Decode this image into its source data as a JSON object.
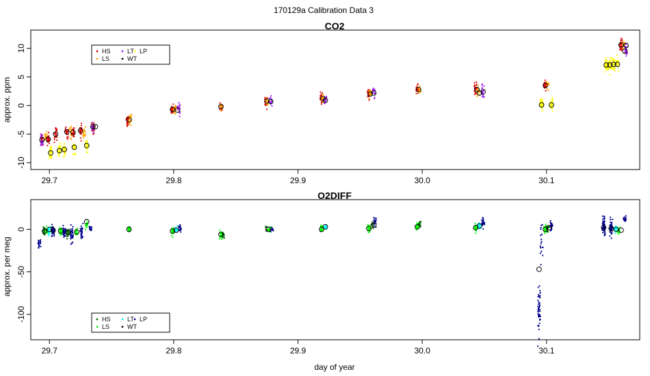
{
  "figure": {
    "title": "170129a   Calibration Data 3",
    "xlabel": "day of year"
  },
  "chart_data": [
    {
      "type": "scatter",
      "title": "CO2",
      "xlabel": "",
      "ylabel": "approx. ppm",
      "xlim": [
        29.685,
        30.175
      ],
      "ylim": [
        -11.2,
        13.2
      ],
      "xticks": [
        29.7,
        29.8,
        29.9,
        30.0,
        30.1
      ],
      "xtick_labels": [
        "29.7",
        "29.8",
        "29.9",
        "30.0",
        "30.1"
      ],
      "yticks": [
        -10,
        -5,
        0,
        5,
        10
      ],
      "ytick_labels": [
        "-10",
        "-5",
        "0",
        "5",
        "10"
      ],
      "legend": {
        "placement": "top-left",
        "entries": [
          {
            "label": "HS",
            "color": "#e00000"
          },
          {
            "label": "LS",
            "color": "#ffa500"
          },
          {
            "label": "LT",
            "color": "#a020f0"
          },
          {
            "label": "WT",
            "color": "#000000"
          },
          {
            "label": "LP",
            "color": "#ffff00"
          }
        ]
      },
      "clusters": [
        {
          "x": 29.694,
          "y": -5.8,
          "sd": 1.1,
          "color": "#e00000",
          "n": 28
        },
        {
          "x": 29.694,
          "y": -6.2,
          "sd": 1.0,
          "color": "#a020f0",
          "n": 20
        },
        {
          "x": 29.697,
          "y": -5.5,
          "sd": 1.0,
          "color": "#ffa500",
          "n": 18
        },
        {
          "x": 29.699,
          "y": -6.0,
          "sd": 1.0,
          "color": "#e00000",
          "n": 22
        },
        {
          "x": 29.701,
          "y": -8.2,
          "sd": 1.0,
          "color": "#ffff00",
          "n": 34
        },
        {
          "x": 29.705,
          "y": -5.0,
          "sd": 1.1,
          "color": "#e00000",
          "n": 24
        },
        {
          "x": 29.708,
          "y": -7.9,
          "sd": 0.9,
          "color": "#ffff00",
          "n": 30
        },
        {
          "x": 29.712,
          "y": -7.7,
          "sd": 0.9,
          "color": "#ffff00",
          "n": 28
        },
        {
          "x": 29.714,
          "y": -4.6,
          "sd": 1.1,
          "color": "#e00000",
          "n": 22
        },
        {
          "x": 29.717,
          "y": -4.6,
          "sd": 1.0,
          "color": "#ffa500",
          "n": 18
        },
        {
          "x": 29.719,
          "y": -4.7,
          "sd": 1.0,
          "color": "#e00000",
          "n": 22
        },
        {
          "x": 29.72,
          "y": -7.3,
          "sd": 0.9,
          "color": "#ffff00",
          "n": 28
        },
        {
          "x": 29.725,
          "y": -4.4,
          "sd": 1.1,
          "color": "#e00000",
          "n": 22
        },
        {
          "x": 29.728,
          "y": -4.7,
          "sd": 1.0,
          "color": "#ffa500",
          "n": 18
        },
        {
          "x": 29.73,
          "y": -7.0,
          "sd": 0.9,
          "color": "#ffff00",
          "n": 28
        },
        {
          "x": 29.735,
          "y": -3.8,
          "sd": 1.0,
          "color": "#e00000",
          "n": 20
        },
        {
          "x": 29.735,
          "y": -3.8,
          "sd": 0.9,
          "color": "#a020f0",
          "n": 18
        },
        {
          "x": 29.763,
          "y": -2.5,
          "sd": 0.9,
          "color": "#e00000",
          "n": 26
        },
        {
          "x": 29.765,
          "y": -2.4,
          "sd": 0.8,
          "color": "#ffa500",
          "n": 16
        },
        {
          "x": 29.799,
          "y": -0.7,
          "sd": 0.9,
          "color": "#e00000",
          "n": 24
        },
        {
          "x": 29.801,
          "y": -0.7,
          "sd": 0.9,
          "color": "#ffa500",
          "n": 18
        },
        {
          "x": 29.804,
          "y": -0.6,
          "sd": 0.9,
          "color": "#a020f0",
          "n": 20
        },
        {
          "x": 29.838,
          "y": -0.2,
          "sd": 0.7,
          "color": "#e00000",
          "n": 22
        },
        {
          "x": 29.838,
          "y": -0.2,
          "sd": 0.7,
          "color": "#ffa500",
          "n": 14
        },
        {
          "x": 29.874,
          "y": 0.8,
          "sd": 0.8,
          "color": "#e00000",
          "n": 22
        },
        {
          "x": 29.875,
          "y": 0.8,
          "sd": 0.7,
          "color": "#ffa500",
          "n": 14
        },
        {
          "x": 29.878,
          "y": 0.7,
          "sd": 0.8,
          "color": "#a020f0",
          "n": 18
        },
        {
          "x": 29.919,
          "y": 1.3,
          "sd": 0.8,
          "color": "#e00000",
          "n": 22
        },
        {
          "x": 29.92,
          "y": 1.2,
          "sd": 0.7,
          "color": "#ffa500",
          "n": 14
        },
        {
          "x": 29.922,
          "y": 1.0,
          "sd": 0.8,
          "color": "#a020f0",
          "n": 16
        },
        {
          "x": 29.957,
          "y": 2.0,
          "sd": 0.8,
          "color": "#e00000",
          "n": 22
        },
        {
          "x": 29.958,
          "y": 2.1,
          "sd": 0.7,
          "color": "#ffa500",
          "n": 14
        },
        {
          "x": 29.961,
          "y": 2.3,
          "sd": 0.8,
          "color": "#a020f0",
          "n": 18
        },
        {
          "x": 29.996,
          "y": 2.8,
          "sd": 0.7,
          "color": "#e00000",
          "n": 22
        },
        {
          "x": 29.998,
          "y": 2.8,
          "sd": 0.6,
          "color": "#ffa500",
          "n": 14
        },
        {
          "x": 30.043,
          "y": 2.9,
          "sd": 1.0,
          "color": "#e00000",
          "n": 24
        },
        {
          "x": 30.045,
          "y": 2.5,
          "sd": 0.9,
          "color": "#ffa500",
          "n": 16
        },
        {
          "x": 30.049,
          "y": 2.5,
          "sd": 1.0,
          "color": "#a020f0",
          "n": 22
        },
        {
          "x": 30.096,
          "y": 0.2,
          "sd": 1.1,
          "color": "#ffff00",
          "n": 34
        },
        {
          "x": 30.099,
          "y": 3.5,
          "sd": 0.9,
          "color": "#e00000",
          "n": 22
        },
        {
          "x": 30.101,
          "y": 3.6,
          "sd": 0.8,
          "color": "#ffa500",
          "n": 14
        },
        {
          "x": 30.104,
          "y": 0.3,
          "sd": 1.1,
          "color": "#ffff00",
          "n": 32
        },
        {
          "x": 30.148,
          "y": 7.1,
          "sd": 1.0,
          "color": "#ffff00",
          "n": 38
        },
        {
          "x": 30.151,
          "y": 7.1,
          "sd": 1.0,
          "color": "#ffff00",
          "n": 36
        },
        {
          "x": 30.154,
          "y": 7.2,
          "sd": 1.0,
          "color": "#ffff00",
          "n": 36
        },
        {
          "x": 30.157,
          "y": 7.2,
          "sd": 1.0,
          "color": "#ffff00",
          "n": 36
        },
        {
          "x": 30.16,
          "y": 10.6,
          "sd": 0.9,
          "color": "#e00000",
          "n": 26
        },
        {
          "x": 30.162,
          "y": 10.4,
          "sd": 0.9,
          "color": "#ffa500",
          "n": 16
        },
        {
          "x": 30.164,
          "y": 9.7,
          "sd": 1.0,
          "color": "#a020f0",
          "n": 24
        }
      ],
      "means": [
        {
          "x": 29.694,
          "y": -6.0
        },
        {
          "x": 29.699,
          "y": -5.9
        },
        {
          "x": 29.701,
          "y": -8.3
        },
        {
          "x": 29.705,
          "y": -5.0
        },
        {
          "x": 29.708,
          "y": -7.9
        },
        {
          "x": 29.712,
          "y": -7.7
        },
        {
          "x": 29.714,
          "y": -4.6
        },
        {
          "x": 29.719,
          "y": -4.7
        },
        {
          "x": 29.72,
          "y": -7.3
        },
        {
          "x": 29.725,
          "y": -4.4
        },
        {
          "x": 29.73,
          "y": -7.0
        },
        {
          "x": 29.735,
          "y": -3.7
        },
        {
          "x": 29.737,
          "y": -3.7
        },
        {
          "x": 29.764,
          "y": -2.5
        },
        {
          "x": 29.799,
          "y": -0.7
        },
        {
          "x": 29.803,
          "y": -0.8
        },
        {
          "x": 29.838,
          "y": -0.2
        },
        {
          "x": 29.875,
          "y": 0.8
        },
        {
          "x": 29.878,
          "y": 0.7
        },
        {
          "x": 29.92,
          "y": 1.2
        },
        {
          "x": 29.922,
          "y": 0.9
        },
        {
          "x": 29.958,
          "y": 2.0
        },
        {
          "x": 29.961,
          "y": 2.2
        },
        {
          "x": 29.997,
          "y": 2.8
        },
        {
          "x": 30.044,
          "y": 2.8
        },
        {
          "x": 30.046,
          "y": 2.2
        },
        {
          "x": 30.049,
          "y": 2.4
        },
        {
          "x": 30.096,
          "y": 0.1
        },
        {
          "x": 30.099,
          "y": 3.5
        },
        {
          "x": 30.104,
          "y": 0.1
        },
        {
          "x": 30.148,
          "y": 7.1
        },
        {
          "x": 30.151,
          "y": 7.1
        },
        {
          "x": 30.154,
          "y": 7.2
        },
        {
          "x": 30.157,
          "y": 7.2
        },
        {
          "x": 30.16,
          "y": 10.6
        },
        {
          "x": 30.163,
          "y": 9.5
        },
        {
          "x": 30.164,
          "y": 10.5
        }
      ]
    },
    {
      "type": "scatter",
      "title": "O2DIFF",
      "xlabel": "day of year",
      "ylabel": "approx. per meg",
      "xlim": [
        29.685,
        30.175
      ],
      "ylim": [
        -130,
        35
      ],
      "xticks": [
        29.7,
        29.8,
        29.9,
        30.0,
        30.1
      ],
      "xtick_labels": [
        "29.7",
        "29.8",
        "29.9",
        "30.0",
        "30.1"
      ],
      "yticks": [
        -100,
        -50,
        0
      ],
      "ytick_labels": [
        "-100",
        "-50",
        "0"
      ],
      "legend": {
        "placement": "bottom-left",
        "entries": [
          {
            "label": "HS",
            "color": "#006400"
          },
          {
            "label": "LS",
            "color": "#00ff00"
          },
          {
            "label": "LT",
            "color": "#00ffff"
          },
          {
            "label": "WT",
            "color": "#000000"
          },
          {
            "label": "LP",
            "color": "#00008b"
          }
        ]
      },
      "clusters": [
        {
          "x": 29.692,
          "y": -16,
          "sd": 4,
          "color": "#00008b",
          "n": 22
        },
        {
          "x": 29.696,
          "y": -2,
          "sd": 4,
          "color": "#006400",
          "n": 22
        },
        {
          "x": 29.698,
          "y": -2,
          "sd": 4,
          "color": "#00ff00",
          "n": 16
        },
        {
          "x": 29.7,
          "y": -1,
          "sd": 5,
          "color": "#00ffff",
          "n": 20
        },
        {
          "x": 29.703,
          "y": -3,
          "sd": 6,
          "color": "#00008b",
          "n": 40
        },
        {
          "x": 29.709,
          "y": -2,
          "sd": 4,
          "color": "#00ff00",
          "n": 20
        },
        {
          "x": 29.712,
          "y": -3,
          "sd": 6,
          "color": "#00008b",
          "n": 36
        },
        {
          "x": 29.715,
          "y": -4,
          "sd": 4,
          "color": "#006400",
          "n": 20
        },
        {
          "x": 29.718,
          "y": -6,
          "sd": 9,
          "color": "#00008b",
          "n": 30
        },
        {
          "x": 29.722,
          "y": -3,
          "sd": 4,
          "color": "#00ff00",
          "n": 16
        },
        {
          "x": 29.726,
          "y": -5,
          "sd": 7,
          "color": "#00008b",
          "n": 30
        },
        {
          "x": 29.73,
          "y": 6,
          "sd": 4,
          "color": "#00ff00",
          "n": 18
        },
        {
          "x": 29.733,
          "y": 1,
          "sd": 4,
          "color": "#00008b",
          "n": 16
        },
        {
          "x": 29.764,
          "y": 0,
          "sd": 3,
          "color": "#00ff00",
          "n": 22
        },
        {
          "x": 29.799,
          "y": -2,
          "sd": 4,
          "color": "#00ff00",
          "n": 22
        },
        {
          "x": 29.802,
          "y": -1,
          "sd": 4,
          "color": "#00ffff",
          "n": 16
        },
        {
          "x": 29.805,
          "y": 0,
          "sd": 4,
          "color": "#00008b",
          "n": 18
        },
        {
          "x": 29.838,
          "y": -6,
          "sd": 4,
          "color": "#00ff00",
          "n": 22
        },
        {
          "x": 29.84,
          "y": -7,
          "sd": 4,
          "color": "#006400",
          "n": 14
        },
        {
          "x": 29.875,
          "y": 1,
          "sd": 3,
          "color": "#006400",
          "n": 16
        },
        {
          "x": 29.877,
          "y": 0,
          "sd": 3,
          "color": "#00ff00",
          "n": 18
        },
        {
          "x": 29.879,
          "y": -1,
          "sd": 3,
          "color": "#00008b",
          "n": 16
        },
        {
          "x": 29.919,
          "y": 0,
          "sd": 4,
          "color": "#00ff00",
          "n": 20
        },
        {
          "x": 29.922,
          "y": 3,
          "sd": 3,
          "color": "#00ffff",
          "n": 18
        },
        {
          "x": 29.957,
          "y": 1,
          "sd": 4,
          "color": "#00ff00",
          "n": 20
        },
        {
          "x": 29.96,
          "y": 5,
          "sd": 4,
          "color": "#006400",
          "n": 14
        },
        {
          "x": 29.962,
          "y": 10,
          "sd": 4,
          "color": "#00008b",
          "n": 20
        },
        {
          "x": 29.996,
          "y": 3,
          "sd": 4,
          "color": "#00ff00",
          "n": 22
        },
        {
          "x": 29.998,
          "y": 6,
          "sd": 3,
          "color": "#006400",
          "n": 12
        },
        {
          "x": 30.043,
          "y": 2,
          "sd": 4,
          "color": "#00ff00",
          "n": 22
        },
        {
          "x": 30.046,
          "y": 4,
          "sd": 3,
          "color": "#00ffff",
          "n": 16
        },
        {
          "x": 30.049,
          "y": 8,
          "sd": 5,
          "color": "#00008b",
          "n": 22
        },
        {
          "x": 30.094,
          "y": -95,
          "sd": 28,
          "color": "#00008b",
          "n": 50
        },
        {
          "x": 30.096,
          "y": -20,
          "sd": 25,
          "color": "#00008b",
          "n": 18
        },
        {
          "x": 30.099,
          "y": 0,
          "sd": 4,
          "color": "#00ff00",
          "n": 22
        },
        {
          "x": 30.101,
          "y": 2,
          "sd": 4,
          "color": "#006400",
          "n": 16
        },
        {
          "x": 30.104,
          "y": 4,
          "sd": 5,
          "color": "#00008b",
          "n": 22
        },
        {
          "x": 30.146,
          "y": 4,
          "sd": 9,
          "color": "#00008b",
          "n": 60
        },
        {
          "x": 30.152,
          "y": 3,
          "sd": 9,
          "color": "#00008b",
          "n": 50
        },
        {
          "x": 30.156,
          "y": 0,
          "sd": 4,
          "color": "#00ffff",
          "n": 22
        },
        {
          "x": 30.158,
          "y": -2,
          "sd": 4,
          "color": "#00ff00",
          "n": 16
        },
        {
          "x": 30.163,
          "y": 12,
          "sd": 3,
          "color": "#00008b",
          "n": 16
        }
      ],
      "means": [
        {
          "x": 29.696,
          "y": -2
        },
        {
          "x": 29.7,
          "y": 0
        },
        {
          "x": 29.703,
          "y": -1
        },
        {
          "x": 29.709,
          "y": -2
        },
        {
          "x": 29.715,
          "y": -4
        },
        {
          "x": 29.722,
          "y": -3
        },
        {
          "x": 29.73,
          "y": 9
        },
        {
          "x": 29.764,
          "y": 0
        },
        {
          "x": 29.799,
          "y": -2
        },
        {
          "x": 29.802,
          "y": -1
        },
        {
          "x": 29.838,
          "y": -6
        },
        {
          "x": 29.876,
          "y": 0
        },
        {
          "x": 29.919,
          "y": 0
        },
        {
          "x": 29.922,
          "y": 3
        },
        {
          "x": 29.957,
          "y": 1
        },
        {
          "x": 29.961,
          "y": 5
        },
        {
          "x": 29.996,
          "y": 3
        },
        {
          "x": 30.043,
          "y": 2
        },
        {
          "x": 30.046,
          "y": 4
        },
        {
          "x": 30.094,
          "y": -47
        },
        {
          "x": 30.099,
          "y": 0
        },
        {
          "x": 30.102,
          "y": 2
        },
        {
          "x": 30.146,
          "y": 2
        },
        {
          "x": 30.152,
          "y": 1
        },
        {
          "x": 30.156,
          "y": 0
        },
        {
          "x": 30.16,
          "y": -1
        }
      ]
    }
  ]
}
